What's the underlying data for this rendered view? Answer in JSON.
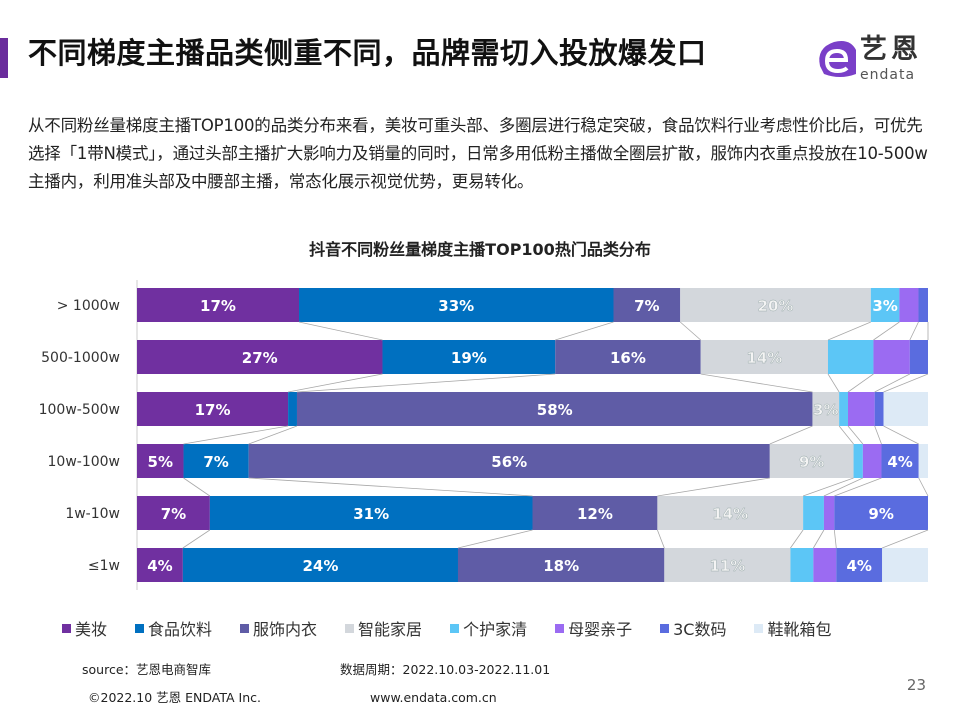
{
  "header": {
    "title": "不同梯度主播品类侧重不同，品牌需切入投放爆发口",
    "logo_cn": "艺恩",
    "logo_en": "endata"
  },
  "description": "从不同粉丝量梯度主播TOP100的品类分布来看，美妆可重头部、多圈层进行稳定突破，食品饮料行业考虑性价比后，可优先选择「1带N模式」，通过头部主播扩大影响力及销量的同时，日常多用低粉主播做全圈层扩散，服饰内衣重点投放在10-500w主播内，利用准头部及中腰部主播，常态化展示视觉优势，更易转化。",
  "chart_data": {
    "type": "bar",
    "orientation": "horizontal",
    "stacked": true,
    "title": "抖音不同粉丝量梯度主播TOP100热门品类分布",
    "categories": [
      "> 1000w",
      "500-1000w",
      "100w-500w",
      "10w-100w",
      "1w-10w",
      "≤1w"
    ],
    "series": [
      {
        "name": "美妆",
        "color": "#7030A0",
        "values": [
          17,
          27,
          17,
          5,
          7,
          4
        ],
        "labels": [
          "17%",
          "27%",
          "17%",
          "5%",
          "7%",
          "4%"
        ]
      },
      {
        "name": "食品饮料",
        "color": "#0070C0",
        "values": [
          33,
          19,
          1,
          7,
          31,
          24
        ],
        "labels": [
          "33%",
          "19%",
          null,
          "7%",
          "31%",
          "24%"
        ]
      },
      {
        "name": "服饰内衣",
        "color": "#5F5CA6",
        "values": [
          7,
          16,
          58,
          56,
          12,
          18
        ],
        "labels": [
          "7%",
          "16%",
          "58%",
          "56%",
          "12%",
          "18%"
        ]
      },
      {
        "name": "智能家居",
        "color": "#D3D7DC",
        "values": [
          20,
          14,
          3,
          9,
          14,
          11
        ],
        "labels": [
          "20%",
          "14%",
          "3%",
          "9%",
          "14%",
          "11%"
        ]
      },
      {
        "name": "个护家清",
        "color": "#5CC6F6",
        "values": [
          3,
          5,
          1,
          1,
          2,
          2
        ],
        "labels": [
          "3%",
          null,
          null,
          null,
          null,
          null
        ]
      },
      {
        "name": "母婴亲子",
        "color": "#9B6BF2",
        "values": [
          2,
          4,
          3,
          2,
          1,
          2
        ],
        "labels": [
          null,
          null,
          null,
          null,
          null,
          null
        ]
      },
      {
        "name": "3C数码",
        "color": "#5A6CDF",
        "values": [
          1,
          2,
          1,
          4,
          9,
          4
        ],
        "labels": [
          null,
          null,
          null,
          "4%",
          "9%",
          "4%"
        ]
      },
      {
        "name": "鞋靴箱包",
        "color": "#DDEAF6",
        "values": [
          0,
          0,
          5,
          1,
          0,
          4
        ],
        "labels": [
          null,
          null,
          null,
          null,
          null,
          null
        ]
      }
    ],
    "legend": "bottom",
    "grid": false,
    "series_lines": true
  },
  "footer": {
    "source": "source：艺恩电商智库",
    "period": "数据周期：2022.10.03-2022.11.01",
    "copyright": "©2022.10 艺恩 ENDATA Inc.",
    "website": "www.endata.com.cn",
    "page_number": "23"
  }
}
